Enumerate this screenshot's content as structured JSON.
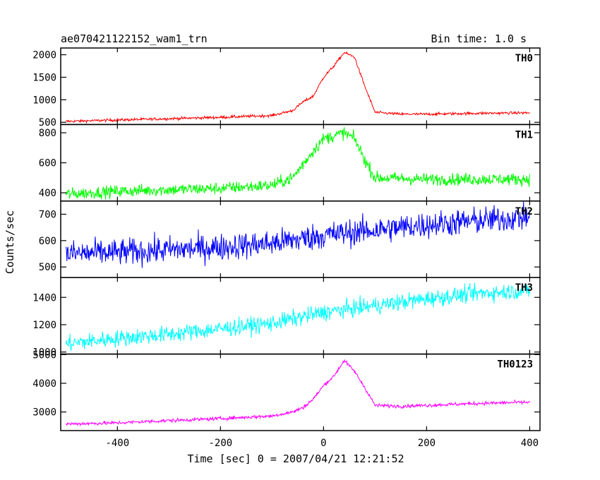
{
  "header": {
    "title": "ae070421122152_wam1_trn",
    "bin_time": "Bin time: 1.0 s"
  },
  "axes": {
    "xlabel": "Time [sec] 0 = 2007/04/21 12:21:52",
    "ylabel": "Counts/sec"
  },
  "chart_data": [
    {
      "type": "line",
      "name": "TH0",
      "color": "#ff0000",
      "xlim": [
        -510,
        420
      ],
      "ylim": [
        450,
        2150
      ],
      "yticks": [
        500,
        1000,
        1500,
        2000
      ],
      "xticks": [
        -400,
        -200,
        0,
        200,
        400
      ],
      "x": [
        -500,
        -400,
        -300,
        -200,
        -100,
        -60,
        -40,
        -20,
        0,
        20,
        40,
        60,
        80,
        100,
        150,
        200,
        300,
        400
      ],
      "values": [
        520,
        550,
        580,
        610,
        650,
        760,
        950,
        1080,
        1500,
        1750,
        2050,
        1950,
        1300,
        720,
        680,
        680,
        700,
        710
      ],
      "noise": 30
    },
    {
      "type": "line",
      "name": "TH1",
      "color": "#00ff00",
      "xlim": [
        -510,
        420
      ],
      "ylim": [
        345,
        855
      ],
      "yticks": [
        400,
        600,
        800
      ],
      "xticks": [
        -400,
        -200,
        0,
        200,
        400
      ],
      "x": [
        -500,
        -400,
        -300,
        -200,
        -100,
        -60,
        -20,
        0,
        40,
        60,
        80,
        100,
        200,
        300,
        400
      ],
      "values": [
        390,
        410,
        420,
        430,
        450,
        500,
        680,
        760,
        800,
        760,
        620,
        500,
        490,
        490,
        490
      ],
      "noise": 40
    },
    {
      "type": "line",
      "name": "TH2",
      "color": "#0000ff",
      "xlim": [
        -510,
        420
      ],
      "ylim": [
        460,
        750
      ],
      "yticks": [
        500,
        600,
        700
      ],
      "xticks": [
        -400,
        -200,
        0,
        200,
        400
      ],
      "x": [
        -500,
        -400,
        -300,
        -200,
        -100,
        0,
        100,
        200,
        300,
        400
      ],
      "values": [
        550,
        555,
        565,
        575,
        590,
        620,
        640,
        660,
        675,
        690
      ],
      "noise": 50
    },
    {
      "type": "line",
      "name": "TH3",
      "color": "#00ffff",
      "xlim": [
        -510,
        420
      ],
      "ylim": [
        985,
        1545
      ],
      "yticks": [
        1000,
        1200,
        1400
      ],
      "xticks": [
        -400,
        -200,
        0,
        200,
        400
      ],
      "x": [
        -500,
        -400,
        -300,
        -200,
        -100,
        0,
        100,
        200,
        300,
        400
      ],
      "values": [
        1060,
        1100,
        1130,
        1170,
        1210,
        1290,
        1340,
        1390,
        1430,
        1450
      ],
      "noise": 60
    },
    {
      "type": "line",
      "name": "TH0123",
      "color": "#ff00ff",
      "xlim": [
        -510,
        420
      ],
      "ylim": [
        2350,
        5020
      ],
      "yticks": [
        3000,
        4000,
        5000
      ],
      "xticks": [
        -400,
        -200,
        0,
        200,
        400
      ],
      "x": [
        -500,
        -400,
        -300,
        -200,
        -100,
        -60,
        -40,
        -20,
        0,
        20,
        40,
        60,
        80,
        100,
        150,
        200,
        300,
        400
      ],
      "values": [
        2580,
        2620,
        2700,
        2770,
        2860,
        3000,
        3150,
        3450,
        3920,
        4250,
        4800,
        4420,
        3850,
        3230,
        3200,
        3230,
        3300,
        3340
      ],
      "noise": 60
    }
  ]
}
